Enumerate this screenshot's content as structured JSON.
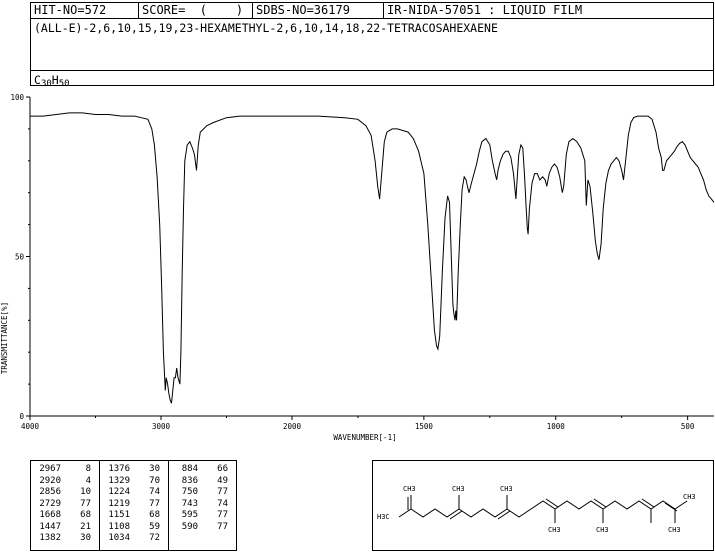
{
  "header": {
    "hit_no": "HIT-NO=572",
    "score": "SCORE=  (    )",
    "sdbs_no": "SDBS-NO=36179",
    "ir_info": "IR-NIDA-57051 : LIQUID FILM",
    "compound_name": "(ALL-E)-2,6,10,15,19,23-HEXAMETHYL-2,6,10,14,18,22-TETRACOSAHEXAENE",
    "formula": {
      "c": "C",
      "c_count": "30",
      "h": "H",
      "h_count": "50"
    }
  },
  "chart_data": {
    "type": "line",
    "xlabel": "WAVENUMBER[-1]",
    "ylabel": "TRANSMITTANCE[%]",
    "xlim": [
      4000,
      400
    ],
    "ylim": [
      0,
      100
    ],
    "x_ticks": [
      4000,
      3000,
      2000,
      1500,
      1000,
      500
    ],
    "y_ticks": [
      0,
      50,
      100
    ],
    "series": [
      {
        "points": [
          [
            4000,
            94
          ],
          [
            3900,
            94
          ],
          [
            3800,
            94.5
          ],
          [
            3700,
            95
          ],
          [
            3600,
            95
          ],
          [
            3500,
            94.5
          ],
          [
            3400,
            94.5
          ],
          [
            3300,
            94
          ],
          [
            3200,
            94
          ],
          [
            3150,
            93.5
          ],
          [
            3100,
            93
          ],
          [
            3070,
            90
          ],
          [
            3050,
            85
          ],
          [
            3030,
            75
          ],
          [
            3010,
            60
          ],
          [
            2995,
            40
          ],
          [
            2982,
            20
          ],
          [
            2967,
            8
          ],
          [
            2960,
            12
          ],
          [
            2950,
            10
          ],
          [
            2940,
            7
          ],
          [
            2930,
            5
          ],
          [
            2920,
            4
          ],
          [
            2910,
            8
          ],
          [
            2900,
            12
          ],
          [
            2890,
            12
          ],
          [
            2880,
            15
          ],
          [
            2870,
            12
          ],
          [
            2856,
            10
          ],
          [
            2848,
            20
          ],
          [
            2838,
            45
          ],
          [
            2828,
            65
          ],
          [
            2818,
            80
          ],
          [
            2800,
            85
          ],
          [
            2780,
            86
          ],
          [
            2760,
            84
          ],
          [
            2745,
            82
          ],
          [
            2729,
            77
          ],
          [
            2715,
            85
          ],
          [
            2700,
            89
          ],
          [
            2650,
            91
          ],
          [
            2600,
            92
          ],
          [
            2500,
            93.5
          ],
          [
            2400,
            94
          ],
          [
            2300,
            94
          ],
          [
            2200,
            94
          ],
          [
            2100,
            94
          ],
          [
            2000,
            94
          ],
          [
            1900,
            94
          ],
          [
            1800,
            93.5
          ],
          [
            1750,
            93
          ],
          [
            1720,
            91
          ],
          [
            1700,
            88
          ],
          [
            1685,
            80
          ],
          [
            1675,
            72
          ],
          [
            1668,
            68
          ],
          [
            1660,
            76
          ],
          [
            1650,
            86
          ],
          [
            1640,
            89
          ],
          [
            1620,
            90
          ],
          [
            1600,
            90
          ],
          [
            1580,
            89.5
          ],
          [
            1560,
            89
          ],
          [
            1540,
            87
          ],
          [
            1520,
            83
          ],
          [
            1500,
            76
          ],
          [
            1485,
            60
          ],
          [
            1470,
            40
          ],
          [
            1460,
            27
          ],
          [
            1452,
            22
          ],
          [
            1447,
            21
          ],
          [
            1440,
            25
          ],
          [
            1430,
            45
          ],
          [
            1420,
            62
          ],
          [
            1410,
            69
          ],
          [
            1403,
            67
          ],
          [
            1396,
            50
          ],
          [
            1390,
            35
          ],
          [
            1386,
            32
          ],
          [
            1382,
            30
          ],
          [
            1379,
            33
          ],
          [
            1376,
            30
          ],
          [
            1370,
            45
          ],
          [
            1362,
            60
          ],
          [
            1355,
            71
          ],
          [
            1347,
            75
          ],
          [
            1340,
            74
          ],
          [
            1335,
            72
          ],
          [
            1329,
            70
          ],
          [
            1320,
            73
          ],
          [
            1310,
            76
          ],
          [
            1300,
            79
          ],
          [
            1290,
            83
          ],
          [
            1280,
            86
          ],
          [
            1265,
            87
          ],
          [
            1250,
            85
          ],
          [
            1240,
            80
          ],
          [
            1230,
            76
          ],
          [
            1224,
            74
          ],
          [
            1219,
            77
          ],
          [
            1210,
            80
          ],
          [
            1200,
            82
          ],
          [
            1190,
            83
          ],
          [
            1180,
            83
          ],
          [
            1170,
            81
          ],
          [
            1160,
            76
          ],
          [
            1151,
            68
          ],
          [
            1145,
            76
          ],
          [
            1140,
            82
          ],
          [
            1132,
            85
          ],
          [
            1125,
            84
          ],
          [
            1118,
            75
          ],
          [
            1112,
            65
          ],
          [
            1108,
            59
          ],
          [
            1105,
            57
          ],
          [
            1100,
            65
          ],
          [
            1090,
            73
          ],
          [
            1080,
            76
          ],
          [
            1070,
            76
          ],
          [
            1060,
            74
          ],
          [
            1050,
            75
          ],
          [
            1040,
            74
          ],
          [
            1034,
            72
          ],
          [
            1025,
            76
          ],
          [
            1015,
            78
          ],
          [
            1005,
            79
          ],
          [
            995,
            78
          ],
          [
            985,
            75
          ],
          [
            975,
            70
          ],
          [
            970,
            72
          ],
          [
            960,
            82
          ],
          [
            950,
            86
          ],
          [
            935,
            87
          ],
          [
            920,
            86
          ],
          [
            905,
            84
          ],
          [
            890,
            80
          ],
          [
            884,
            66
          ],
          [
            878,
            74
          ],
          [
            870,
            72
          ],
          [
            860,
            64
          ],
          [
            850,
            55
          ],
          [
            843,
            51
          ],
          [
            836,
            49
          ],
          [
            828,
            54
          ],
          [
            820,
            65
          ],
          [
            810,
            73
          ],
          [
            800,
            77
          ],
          [
            790,
            79
          ],
          [
            780,
            80
          ],
          [
            770,
            81
          ],
          [
            760,
            80
          ],
          [
            750,
            77
          ],
          [
            743,
            74
          ],
          [
            735,
            80
          ],
          [
            725,
            88
          ],
          [
            715,
            92
          ],
          [
            705,
            93.5
          ],
          [
            690,
            94
          ],
          [
            670,
            94
          ],
          [
            650,
            94
          ],
          [
            635,
            93
          ],
          [
            620,
            89
          ],
          [
            610,
            84
          ],
          [
            600,
            81
          ],
          [
            595,
            77
          ],
          [
            590,
            77
          ],
          [
            580,
            80
          ],
          [
            570,
            81
          ],
          [
            560,
            82
          ],
          [
            550,
            83
          ],
          [
            540,
            84.5
          ],
          [
            530,
            85.5
          ],
          [
            520,
            86
          ],
          [
            510,
            85
          ],
          [
            500,
            83
          ],
          [
            490,
            81
          ],
          [
            480,
            80
          ],
          [
            470,
            79
          ],
          [
            460,
            78
          ],
          [
            450,
            76
          ],
          [
            440,
            74
          ],
          [
            430,
            71
          ],
          [
            420,
            69
          ],
          [
            410,
            68
          ],
          [
            400,
            67
          ]
        ]
      }
    ]
  },
  "peak_table": {
    "columns": [
      [
        {
          "wn": "2967",
          "t": "8"
        },
        {
          "wn": "2920",
          "t": "4"
        },
        {
          "wn": "2856",
          "t": "10"
        },
        {
          "wn": "2729",
          "t": "77"
        },
        {
          "wn": "1668",
          "t": "68"
        },
        {
          "wn": "1447",
          "t": "21"
        },
        {
          "wn": "1382",
          "t": "30"
        }
      ],
      [
        {
          "wn": "1376",
          "t": "30"
        },
        {
          "wn": "1329",
          "t": "70"
        },
        {
          "wn": "1224",
          "t": "74"
        },
        {
          "wn": "1219",
          "t": "77"
        },
        {
          "wn": "1151",
          "t": "68"
        },
        {
          "wn": "1108",
          "t": "59"
        },
        {
          "wn": "1034",
          "t": "72"
        }
      ],
      [
        {
          "wn": "884",
          "t": "66"
        },
        {
          "wn": "836",
          "t": "49"
        },
        {
          "wn": "750",
          "t": "77"
        },
        {
          "wn": "743",
          "t": "74"
        },
        {
          "wn": "595",
          "t": "77"
        },
        {
          "wn": "590",
          "t": "77"
        }
      ]
    ]
  },
  "structure": {
    "methyl_top": "CH3",
    "methyl_left": "H3C",
    "ch3": "CH3"
  }
}
